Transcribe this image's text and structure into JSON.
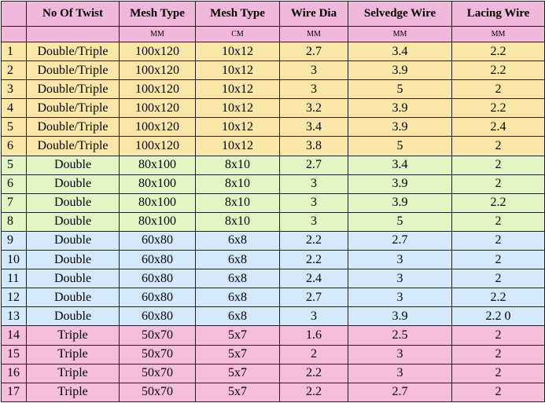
{
  "headers": [
    "",
    "No Of Twist",
    "Mesh Type",
    "Mesh Type",
    "Wire Dia",
    "Selvedge Wire",
    "Lacing Wire"
  ],
  "units": [
    "",
    "",
    "MM",
    "CM",
    "MM",
    "MM",
    "MM"
  ],
  "rows": [
    {
      "group": "yellow",
      "cells": [
        "1",
        "Double/Triple",
        "100x120",
        "10x12",
        "2.7",
        "3.4",
        "2.2"
      ]
    },
    {
      "group": "yellow",
      "cells": [
        "2",
        "Double/Triple",
        "100x120",
        "10x12",
        "3",
        "3.9",
        "2.2"
      ]
    },
    {
      "group": "yellow",
      "cells": [
        "3",
        "Double/Triple",
        "100x120",
        "10x12",
        "3",
        "5",
        "2"
      ]
    },
    {
      "group": "yellow",
      "cells": [
        "4",
        "Double/Triple",
        "100x120",
        "10x12",
        "3.2",
        "3.9",
        "2.2"
      ]
    },
    {
      "group": "yellow",
      "cells": [
        "5",
        "Double/Triple",
        "100x120",
        "10x12",
        "3.4",
        "3.9",
        "2.4"
      ]
    },
    {
      "group": "yellow",
      "cells": [
        "6",
        "Double/Triple",
        "100x120",
        "10x12",
        "3.8",
        "5",
        "2"
      ]
    },
    {
      "group": "green",
      "cells": [
        "5",
        "Double",
        "80x100",
        "8x10",
        "2.7",
        "3.4",
        "2"
      ]
    },
    {
      "group": "green",
      "cells": [
        "6",
        "Double",
        "80x100",
        "8x10",
        "3",
        "3.9",
        "2"
      ]
    },
    {
      "group": "green",
      "cells": [
        "7",
        "Double",
        "80x100",
        "8x10",
        "3",
        "3.9",
        "2.2"
      ]
    },
    {
      "group": "green",
      "cells": [
        "8",
        "Double",
        "80x100",
        "8x10",
        "3",
        "5",
        "2"
      ]
    },
    {
      "group": "blue",
      "cells": [
        "9",
        "Double",
        "60x80",
        "6x8",
        "2.2",
        "2.7",
        "2"
      ]
    },
    {
      "group": "blue",
      "cells": [
        "10",
        "Double",
        "60x80",
        "6x8",
        "2.2",
        "3",
        "2"
      ]
    },
    {
      "group": "blue",
      "cells": [
        "11",
        "Double",
        "60x80",
        "6x8",
        "2.4",
        "3",
        "2"
      ]
    },
    {
      "group": "blue",
      "cells": [
        "12",
        "Double",
        "60x80",
        "6x8",
        "2.7",
        "3",
        "2.2"
      ]
    },
    {
      "group": "blue",
      "cells": [
        "13",
        "Double",
        "60x80",
        "6x8",
        "3",
        "3.9",
        "2.2 0"
      ]
    },
    {
      "group": "rose",
      "cells": [
        "14",
        "Triple",
        "50x70",
        "5x7",
        "1.6",
        "2.5",
        "2"
      ]
    },
    {
      "group": "rose",
      "cells": [
        "15",
        "Triple",
        "50x70",
        "5x7",
        "2",
        "3",
        "2"
      ]
    },
    {
      "group": "rose",
      "cells": [
        "16",
        "Triple",
        "50x70",
        "5x7",
        "2.2",
        "3",
        "2"
      ]
    },
    {
      "group": "rose",
      "cells": [
        "17",
        "Triple",
        "50x70",
        "5x7",
        "2.2",
        "2.7",
        "2"
      ]
    }
  ],
  "colors": {
    "header": "#f2b8dc",
    "yellow": "#fbe8a8",
    "green": "#e2f6c4",
    "blue": "#d4e9fb",
    "rose": "#f6bddd",
    "border": "#1f1f1f"
  }
}
